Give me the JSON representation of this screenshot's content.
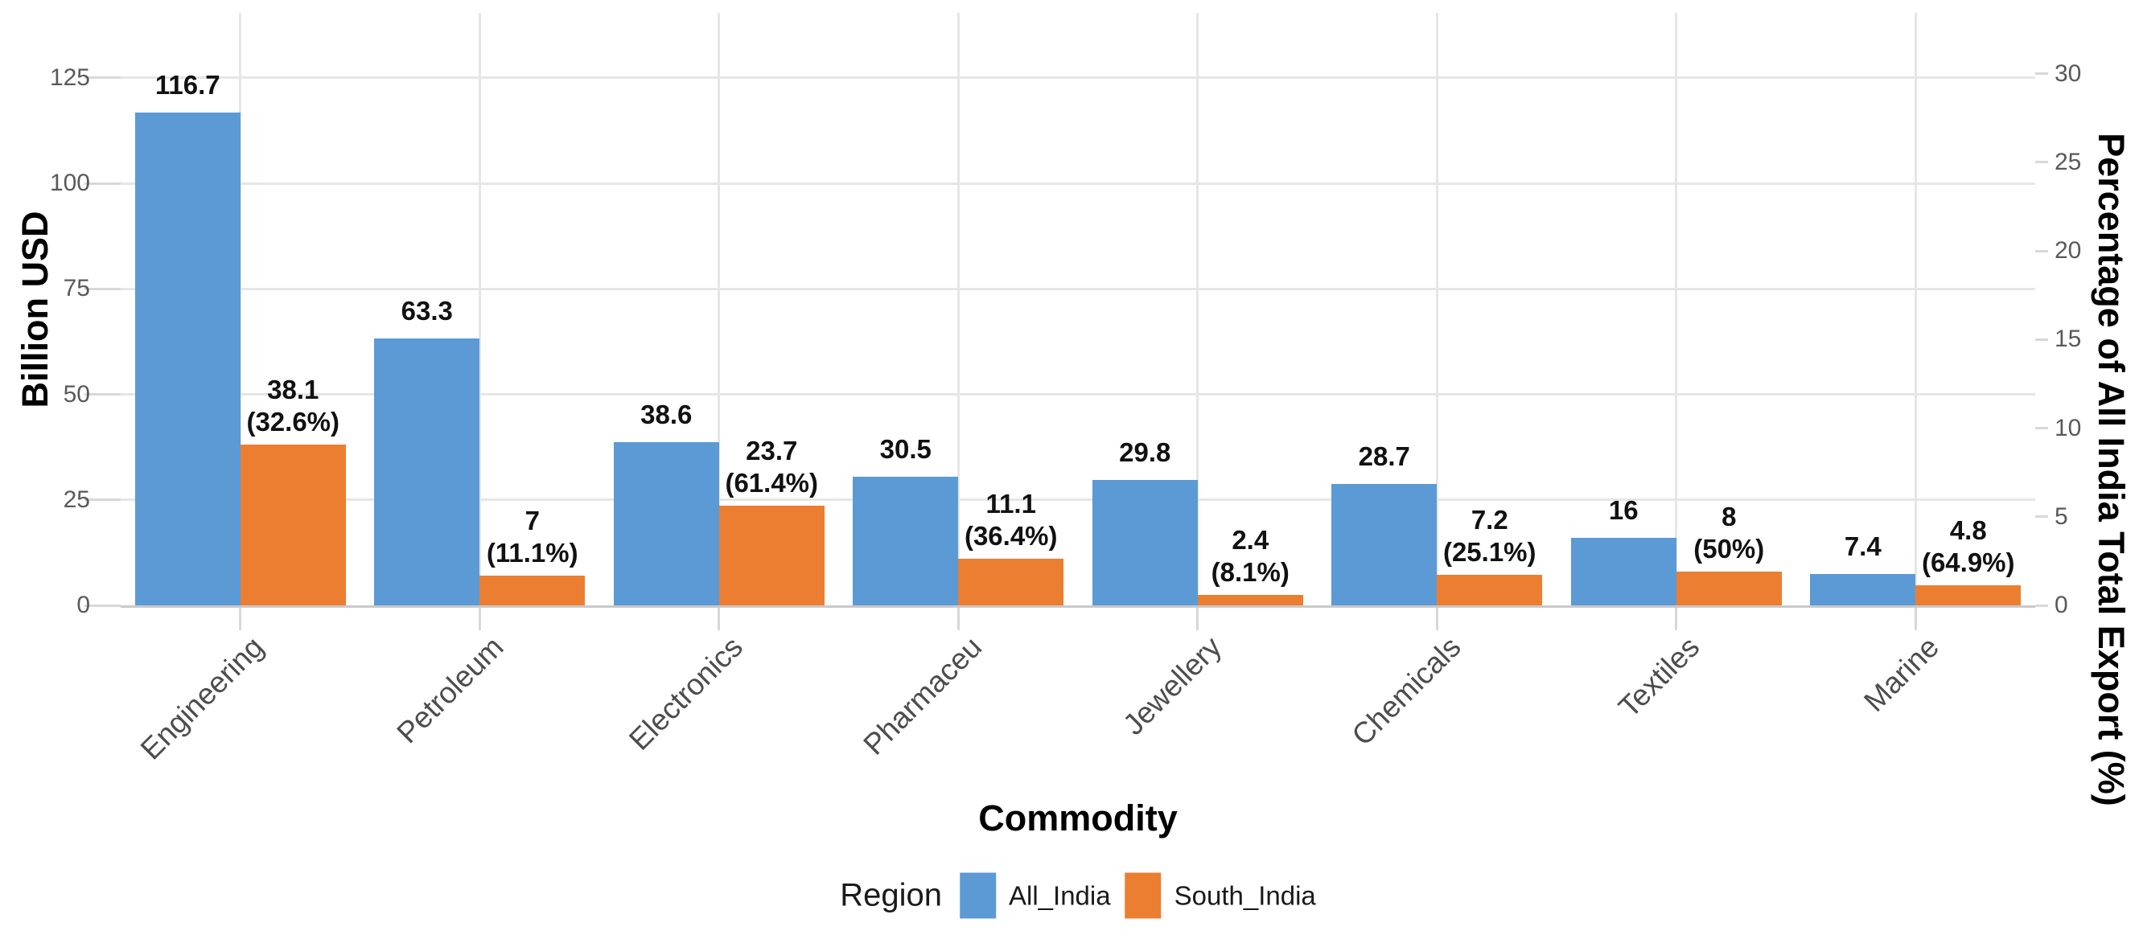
{
  "axes": {
    "left_title": "Billion USD",
    "right_title": "Percentage of All India Total Export (%)",
    "x_title": "Commodity"
  },
  "legend": {
    "title": "Region",
    "items": [
      {
        "label": "All_India",
        "color": "#5B9AD5"
      },
      {
        "label": "South_India",
        "color": "#EC7E31"
      }
    ]
  },
  "chart_data": {
    "type": "bar",
    "title": "",
    "xlabel": "Commodity",
    "ylabel": "Billion USD",
    "ylabel_right": "Percentage of All India Total Export (%)",
    "grid": true,
    "legend_position": "bottom",
    "categories": [
      "Engineering",
      "Petroleum",
      "Electronics",
      "Pharmaceu",
      "Jewellery",
      "Chemicals",
      "Textiles",
      "Marine"
    ],
    "series": [
      {
        "name": "All_India",
        "color": "#5B9AD5",
        "values": [
          116.7,
          63.3,
          38.6,
          30.5,
          29.8,
          28.7,
          16,
          7.4
        ],
        "labels": [
          "116.7",
          "63.3",
          "38.6",
          "30.5",
          "29.8",
          "28.7",
          "16",
          "7.4"
        ]
      },
      {
        "name": "South_India",
        "color": "#EC7E31",
        "values": [
          38.1,
          7,
          23.7,
          11.1,
          2.4,
          7.2,
          8,
          4.8
        ],
        "pct_of_all_india": [
          "32.6%",
          "11.1%",
          "61.4%",
          "36.4%",
          "8.1%",
          "25.1%",
          "50%",
          "64.9%"
        ],
        "labels": [
          "38.1\n(32.6%)",
          "7\n(11.1%)",
          "23.7\n(61.4%)",
          "11.1\n(36.4%)",
          "2.4\n(8.1%)",
          "7.2\n(25.1%)",
          "8\n(50%)",
          "4.8\n(64.9%)"
        ]
      }
    ],
    "left_axis": {
      "ticks": [
        0,
        25,
        50,
        75,
        100,
        125
      ],
      "tick_labels": [
        "0",
        "25",
        "50",
        "75",
        "100",
        "125"
      ],
      "ylim": [
        0,
        140
      ]
    },
    "right_axis": {
      "ticks": [
        0,
        5,
        10,
        15,
        20,
        25,
        30
      ],
      "tick_labels": [
        "0",
        "5",
        "10",
        "15",
        "20",
        "25",
        "30"
      ],
      "ylim": [
        0,
        33.3
      ],
      "usd_per_pct": 4.2
    }
  }
}
